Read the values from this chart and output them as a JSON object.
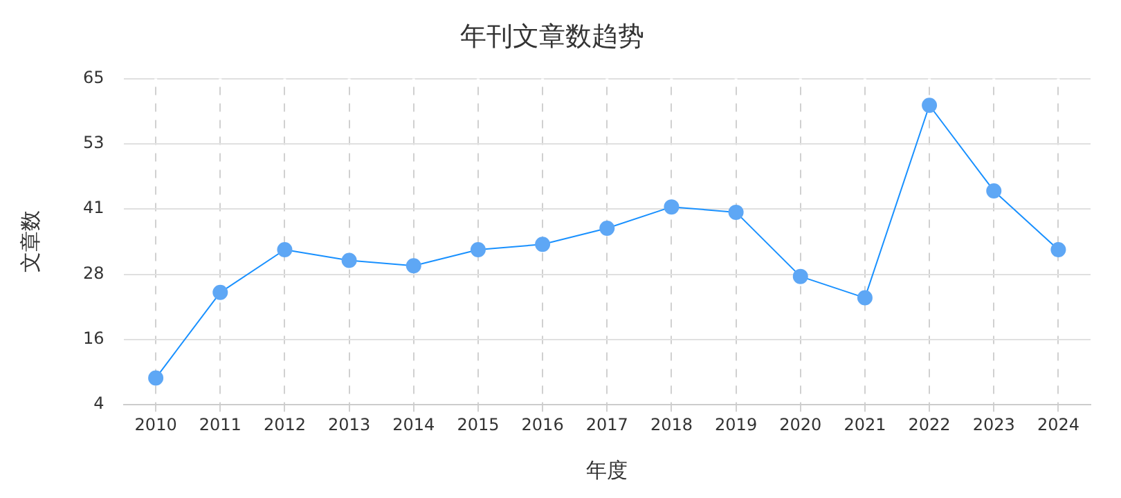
{
  "chart_data": {
    "type": "line",
    "title": "年刊文章数趋势",
    "xlabel": "年度",
    "ylabel": "文章数",
    "categories": [
      "2010",
      "2011",
      "2012",
      "2013",
      "2014",
      "2015",
      "2016",
      "2017",
      "2018",
      "2019",
      "2020",
      "2021",
      "2022",
      "2023",
      "2024"
    ],
    "series": [
      {
        "color": "#1890ff",
        "values": [
          9,
          25,
          33,
          31,
          30,
          33,
          34,
          37,
          41,
          40,
          28,
          24,
          60,
          44,
          33
        ]
      }
    ],
    "ylim": [
      4,
      65
    ],
    "yticks": [
      4,
      {
        "value": 16.2,
        "label": "16"
      },
      {
        "value": 28.4,
        "label": "28"
      },
      {
        "value": 40.6,
        "label": "41"
      },
      {
        "value": 52.8,
        "label": "53"
      },
      65
    ],
    "grid": true,
    "legend": false,
    "marker": "circle",
    "line_style": "solid"
  }
}
